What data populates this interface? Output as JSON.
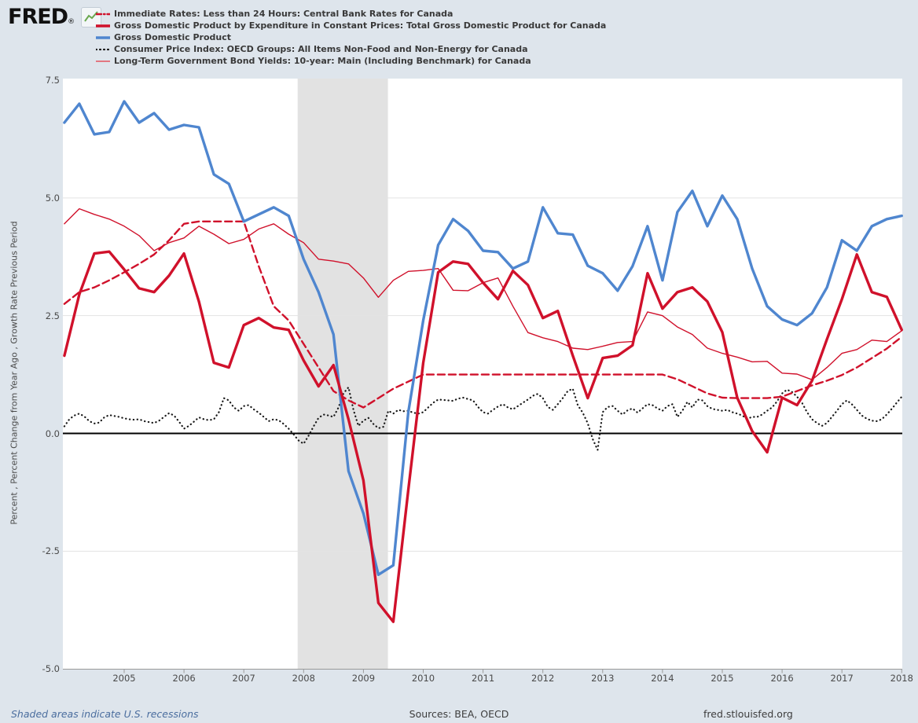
{
  "header": {
    "logo_text": "FRED",
    "logo_registered": "®",
    "logo_icon": "sparkline-icon"
  },
  "legend": {
    "items": [
      {
        "label": "Immediate Rates: Less than 24 Hours: Central Bank Rates for Canada",
        "style": "dash-dot",
        "color": "#d0112b"
      },
      {
        "label": "Gross Domestic Product by Expenditure in Constant Prices: Total Gross Domestic Product for Canada",
        "style": "solid-thick",
        "color": "#d0112b"
      },
      {
        "label": "Gross Domestic Product",
        "style": "solid-thick",
        "color": "#4f86cf"
      },
      {
        "label": "Consumer Price Index: OECD Groups: All Items Non-Food and Non-Energy for Canada",
        "style": "dotted",
        "color": "#1a1a1a"
      },
      {
        "label": "Long-Term Government Bond Yields: 10-year: Main (Including Benchmark) for Canada",
        "style": "solid-thin",
        "color": "#e37781"
      }
    ]
  },
  "footer": {
    "left": "Shaded areas indicate U.S. recessions",
    "center": "Sources: BEA, OECD",
    "right": "fred.stlouisfed.org"
  },
  "chart_data": {
    "type": "line",
    "title": "",
    "xlabel": "",
    "ylabel": "Percent , Percent Change from Year Ago , Growth Rate Previous Period",
    "xlim": [
      2003.975,
      2018.02
    ],
    "ylim": [
      -5.0,
      7.5
    ],
    "grid": "horizontal",
    "legend_position": "top-left",
    "colors": {
      "page_bg": "#dee5ec",
      "plot_bg": "#ffffff",
      "recession_band": "#e2e2e2",
      "gridline": "#e3e3e3",
      "zero_line": "#000000",
      "axis": "#999999",
      "blue": "#4f86cf",
      "red": "#d0112b",
      "black": "#1a1a1a"
    },
    "x_ticks": [
      2005,
      2006,
      2007,
      2008,
      2009,
      2010,
      2011,
      2012,
      2013,
      2014,
      2015,
      2016,
      2017,
      2018
    ],
    "y_ticks": [
      {
        "value": 7.5,
        "label": "7.5"
      },
      {
        "value": 5.0,
        "label": "5.0"
      },
      {
        "value": 2.5,
        "label": "2.5"
      },
      {
        "value": 0.0,
        "label": "0.0"
      },
      {
        "value": -2.5,
        "label": "-2.5"
      },
      {
        "value": -5.0,
        "label": "-5.0"
      }
    ],
    "gridline_values": [
      5.0,
      2.5,
      -2.5
    ],
    "recession_band": {
      "start": 2007.9,
      "end": 2009.41
    },
    "series": [
      {
        "name": "long-term-govt-bond-yields-10yr-canada",
        "color": "#d0112b",
        "width": 1.4,
        "dash": null,
        "x0": 2004.0,
        "dx": 0.25,
        "values": [
          4.45,
          4.77,
          4.65,
          4.55,
          4.4,
          4.2,
          3.88,
          4.05,
          4.15,
          4.4,
          4.23,
          4.03,
          4.12,
          4.34,
          4.45,
          4.23,
          4.05,
          3.7,
          3.66,
          3.6,
          3.3,
          2.89,
          3.25,
          3.44,
          3.46,
          3.5,
          3.04,
          3.03,
          3.2,
          3.3,
          2.7,
          2.14,
          2.03,
          1.95,
          1.81,
          1.78,
          1.85,
          1.93,
          1.95,
          2.58,
          2.5,
          2.26,
          2.1,
          1.81,
          1.7,
          1.62,
          1.52,
          1.53,
          1.28,
          1.26,
          1.14,
          1.4,
          1.7,
          1.78,
          1.98,
          1.95,
          2.18
        ]
      },
      {
        "name": "cpi-oecd-nonfood-nonenergy-canada",
        "color": "#1a1a1a",
        "width": 2.2,
        "dash": "0.3 4.6",
        "linecap": "round",
        "x0": 2004.0,
        "dx": 0.08333,
        "values": [
          0.15,
          0.3,
          0.38,
          0.42,
          0.36,
          0.26,
          0.21,
          0.23,
          0.34,
          0.39,
          0.37,
          0.35,
          0.32,
          0.3,
          0.29,
          0.3,
          0.26,
          0.24,
          0.22,
          0.27,
          0.35,
          0.43,
          0.38,
          0.25,
          0.1,
          0.16,
          0.25,
          0.34,
          0.3,
          0.28,
          0.3,
          0.45,
          0.75,
          0.7,
          0.55,
          0.48,
          0.58,
          0.6,
          0.51,
          0.44,
          0.35,
          0.26,
          0.3,
          0.28,
          0.2,
          0.1,
          -0.02,
          -0.15,
          -0.22,
          -0.05,
          0.15,
          0.33,
          0.4,
          0.38,
          0.35,
          0.55,
          0.85,
          0.98,
          0.5,
          0.16,
          0.27,
          0.33,
          0.2,
          0.11,
          0.14,
          0.48,
          0.42,
          0.5,
          0.47,
          0.48,
          0.44,
          0.42,
          0.45,
          0.55,
          0.65,
          0.72,
          0.71,
          0.7,
          0.69,
          0.74,
          0.76,
          0.73,
          0.7,
          0.56,
          0.45,
          0.42,
          0.5,
          0.57,
          0.62,
          0.55,
          0.51,
          0.58,
          0.65,
          0.72,
          0.8,
          0.84,
          0.75,
          0.56,
          0.5,
          0.62,
          0.75,
          0.9,
          0.95,
          0.6,
          0.44,
          0.22,
          -0.12,
          -0.35,
          0.45,
          0.56,
          0.58,
          0.48,
          0.4,
          0.49,
          0.53,
          0.44,
          0.53,
          0.62,
          0.6,
          0.53,
          0.48,
          0.58,
          0.62,
          0.35,
          0.48,
          0.67,
          0.55,
          0.72,
          0.7,
          0.58,
          0.52,
          0.5,
          0.48,
          0.5,
          0.45,
          0.42,
          0.38,
          0.31,
          0.35,
          0.35,
          0.4,
          0.48,
          0.55,
          0.68,
          0.85,
          0.93,
          0.88,
          0.78,
          0.65,
          0.45,
          0.3,
          0.22,
          0.16,
          0.22,
          0.35,
          0.48,
          0.62,
          0.7,
          0.62,
          0.5,
          0.38,
          0.31,
          0.27,
          0.26,
          0.3,
          0.4,
          0.52,
          0.65,
          0.78
        ]
      },
      {
        "name": "immediate-rates-central-bank-canada",
        "color": "#d0112b",
        "width": 2.4,
        "dash": "9 5",
        "x0": 2004.0,
        "dx": 0.25,
        "values": [
          2.75,
          3.0,
          3.1,
          3.25,
          3.42,
          3.6,
          3.8,
          4.1,
          4.45,
          4.5,
          4.5,
          4.5,
          4.5,
          3.55,
          2.7,
          2.4,
          1.9,
          1.4,
          0.9,
          0.7,
          0.55,
          0.75,
          0.95,
          1.1,
          1.25,
          1.25,
          1.25,
          1.25,
          1.25,
          1.25,
          1.25,
          1.25,
          1.25,
          1.25,
          1.25,
          1.25,
          1.25,
          1.25,
          1.25,
          1.25,
          1.25,
          1.15,
          1.0,
          0.85,
          0.76,
          0.75,
          0.75,
          0.75,
          0.78,
          0.9,
          1.02,
          1.12,
          1.24,
          1.4,
          1.6,
          1.8,
          2.05
        ]
      },
      {
        "name": "gross-domestic-product",
        "color": "#4f86cf",
        "width": 3.4,
        "dash": null,
        "x0": 2004.0,
        "dx": 0.25,
        "values": [
          6.6,
          7.0,
          6.35,
          6.4,
          7.05,
          6.6,
          6.8,
          6.45,
          6.55,
          6.5,
          5.5,
          5.3,
          4.5,
          4.65,
          4.8,
          4.62,
          3.7,
          3.0,
          2.1,
          -0.8,
          -1.7,
          -3.0,
          -2.8,
          0.45,
          2.4,
          4.0,
          4.55,
          4.3,
          3.88,
          3.85,
          3.5,
          3.65,
          4.8,
          4.25,
          4.22,
          3.56,
          3.4,
          3.03,
          3.55,
          4.4,
          3.25,
          4.7,
          5.15,
          4.4,
          5.05,
          4.55,
          3.5,
          2.7,
          2.42,
          2.3,
          2.55,
          3.1,
          4.1,
          3.88,
          4.4,
          4.55,
          4.62
        ]
      },
      {
        "name": "gdp-constant-prices-canada",
        "color": "#d0112b",
        "width": 3.4,
        "dash": null,
        "x0": 2004.0,
        "dx": 0.25,
        "values": [
          1.65,
          2.95,
          3.82,
          3.86,
          3.48,
          3.08,
          3.0,
          3.35,
          3.82,
          2.8,
          1.5,
          1.4,
          2.3,
          2.45,
          2.25,
          2.2,
          1.55,
          1.0,
          1.45,
          0.3,
          -1.0,
          -3.6,
          -4.0,
          -1.2,
          1.5,
          3.42,
          3.65,
          3.6,
          3.2,
          2.85,
          3.45,
          3.15,
          2.45,
          2.6,
          1.65,
          0.75,
          1.6,
          1.65,
          1.87,
          3.4,
          2.65,
          3.0,
          3.1,
          2.8,
          2.15,
          0.76,
          0.05,
          -0.4,
          0.76,
          0.6,
          1.12,
          2.0,
          2.85,
          3.8,
          3.0,
          2.9,
          2.2
        ]
      }
    ]
  }
}
